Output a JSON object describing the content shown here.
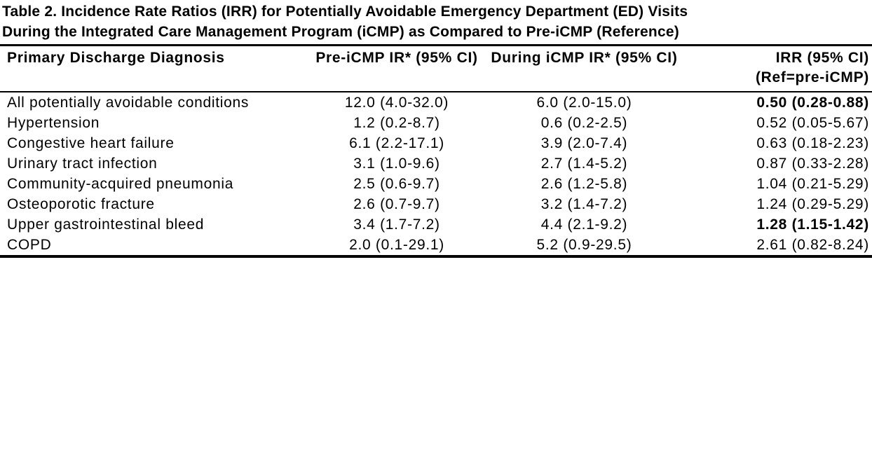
{
  "colors": {
    "background": "#ffffff",
    "text": "#000000",
    "rule": "#000000"
  },
  "title": {
    "line1": "Table 2. Incidence Rate Ratios (IRR) for Potentially Avoidable Emergency Department (ED) Visits",
    "line2": "During the Integrated Care Management Program (iCMP) as Compared to Pre-iCMP (Reference)"
  },
  "table": {
    "headers": {
      "diagnosis": "Primary Discharge Diagnosis",
      "pre_icmp": "Pre-iCMP IR* (95% CI)",
      "during_icmp": "During iCMP IR* (95% CI)",
      "irr_line1": "IRR (95% CI)",
      "irr_line2": "(Ref=pre-iCMP)"
    },
    "rows": [
      {
        "diagnosis": "All potentially avoidable conditions",
        "pre_icmp": "12.0 (4.0-32.0)",
        "during_icmp": "6.0 (2.0-15.0)",
        "irr": "0.50 (0.28-0.88)",
        "irr_bold": true
      },
      {
        "diagnosis": "Hypertension",
        "pre_icmp": "1.2 (0.2-8.7)",
        "during_icmp": "0.6 (0.2-2.5)",
        "irr": "0.52 (0.05-5.67)",
        "irr_bold": false
      },
      {
        "diagnosis": "Congestive heart failure",
        "pre_icmp": "6.1 (2.2-17.1)",
        "during_icmp": "3.9 (2.0-7.4)",
        "irr": "0.63 (0.18-2.23)",
        "irr_bold": false
      },
      {
        "diagnosis": "Urinary tract infection",
        "pre_icmp": "3.1 (1.0-9.6)",
        "during_icmp": "2.7 (1.4-5.2)",
        "irr": "0.87 (0.33-2.28)",
        "irr_bold": false
      },
      {
        "diagnosis": "Community-acquired pneumonia",
        "pre_icmp": "2.5 (0.6-9.7)",
        "during_icmp": "2.6 (1.2-5.8)",
        "irr": "1.04 (0.21-5.29)",
        "irr_bold": false
      },
      {
        "diagnosis": "Osteoporotic fracture",
        "pre_icmp": "2.6 (0.7-9.7)",
        "during_icmp": "3.2 (1.4-7.2)",
        "irr": "1.24 (0.29-5.29)",
        "irr_bold": false
      },
      {
        "diagnosis": "Upper gastrointestinal bleed",
        "pre_icmp": "3.4 (1.7-7.2)",
        "during_icmp": "4.4 (2.1-9.2)",
        "irr": "1.28 (1.15-1.42)",
        "irr_bold": true
      },
      {
        "diagnosis": "COPD",
        "pre_icmp": "2.0 (0.1-29.1)",
        "during_icmp": "5.2 (0.9-29.5)",
        "irr": "2.61 (0.82-8.24)",
        "irr_bold": false
      }
    ]
  }
}
